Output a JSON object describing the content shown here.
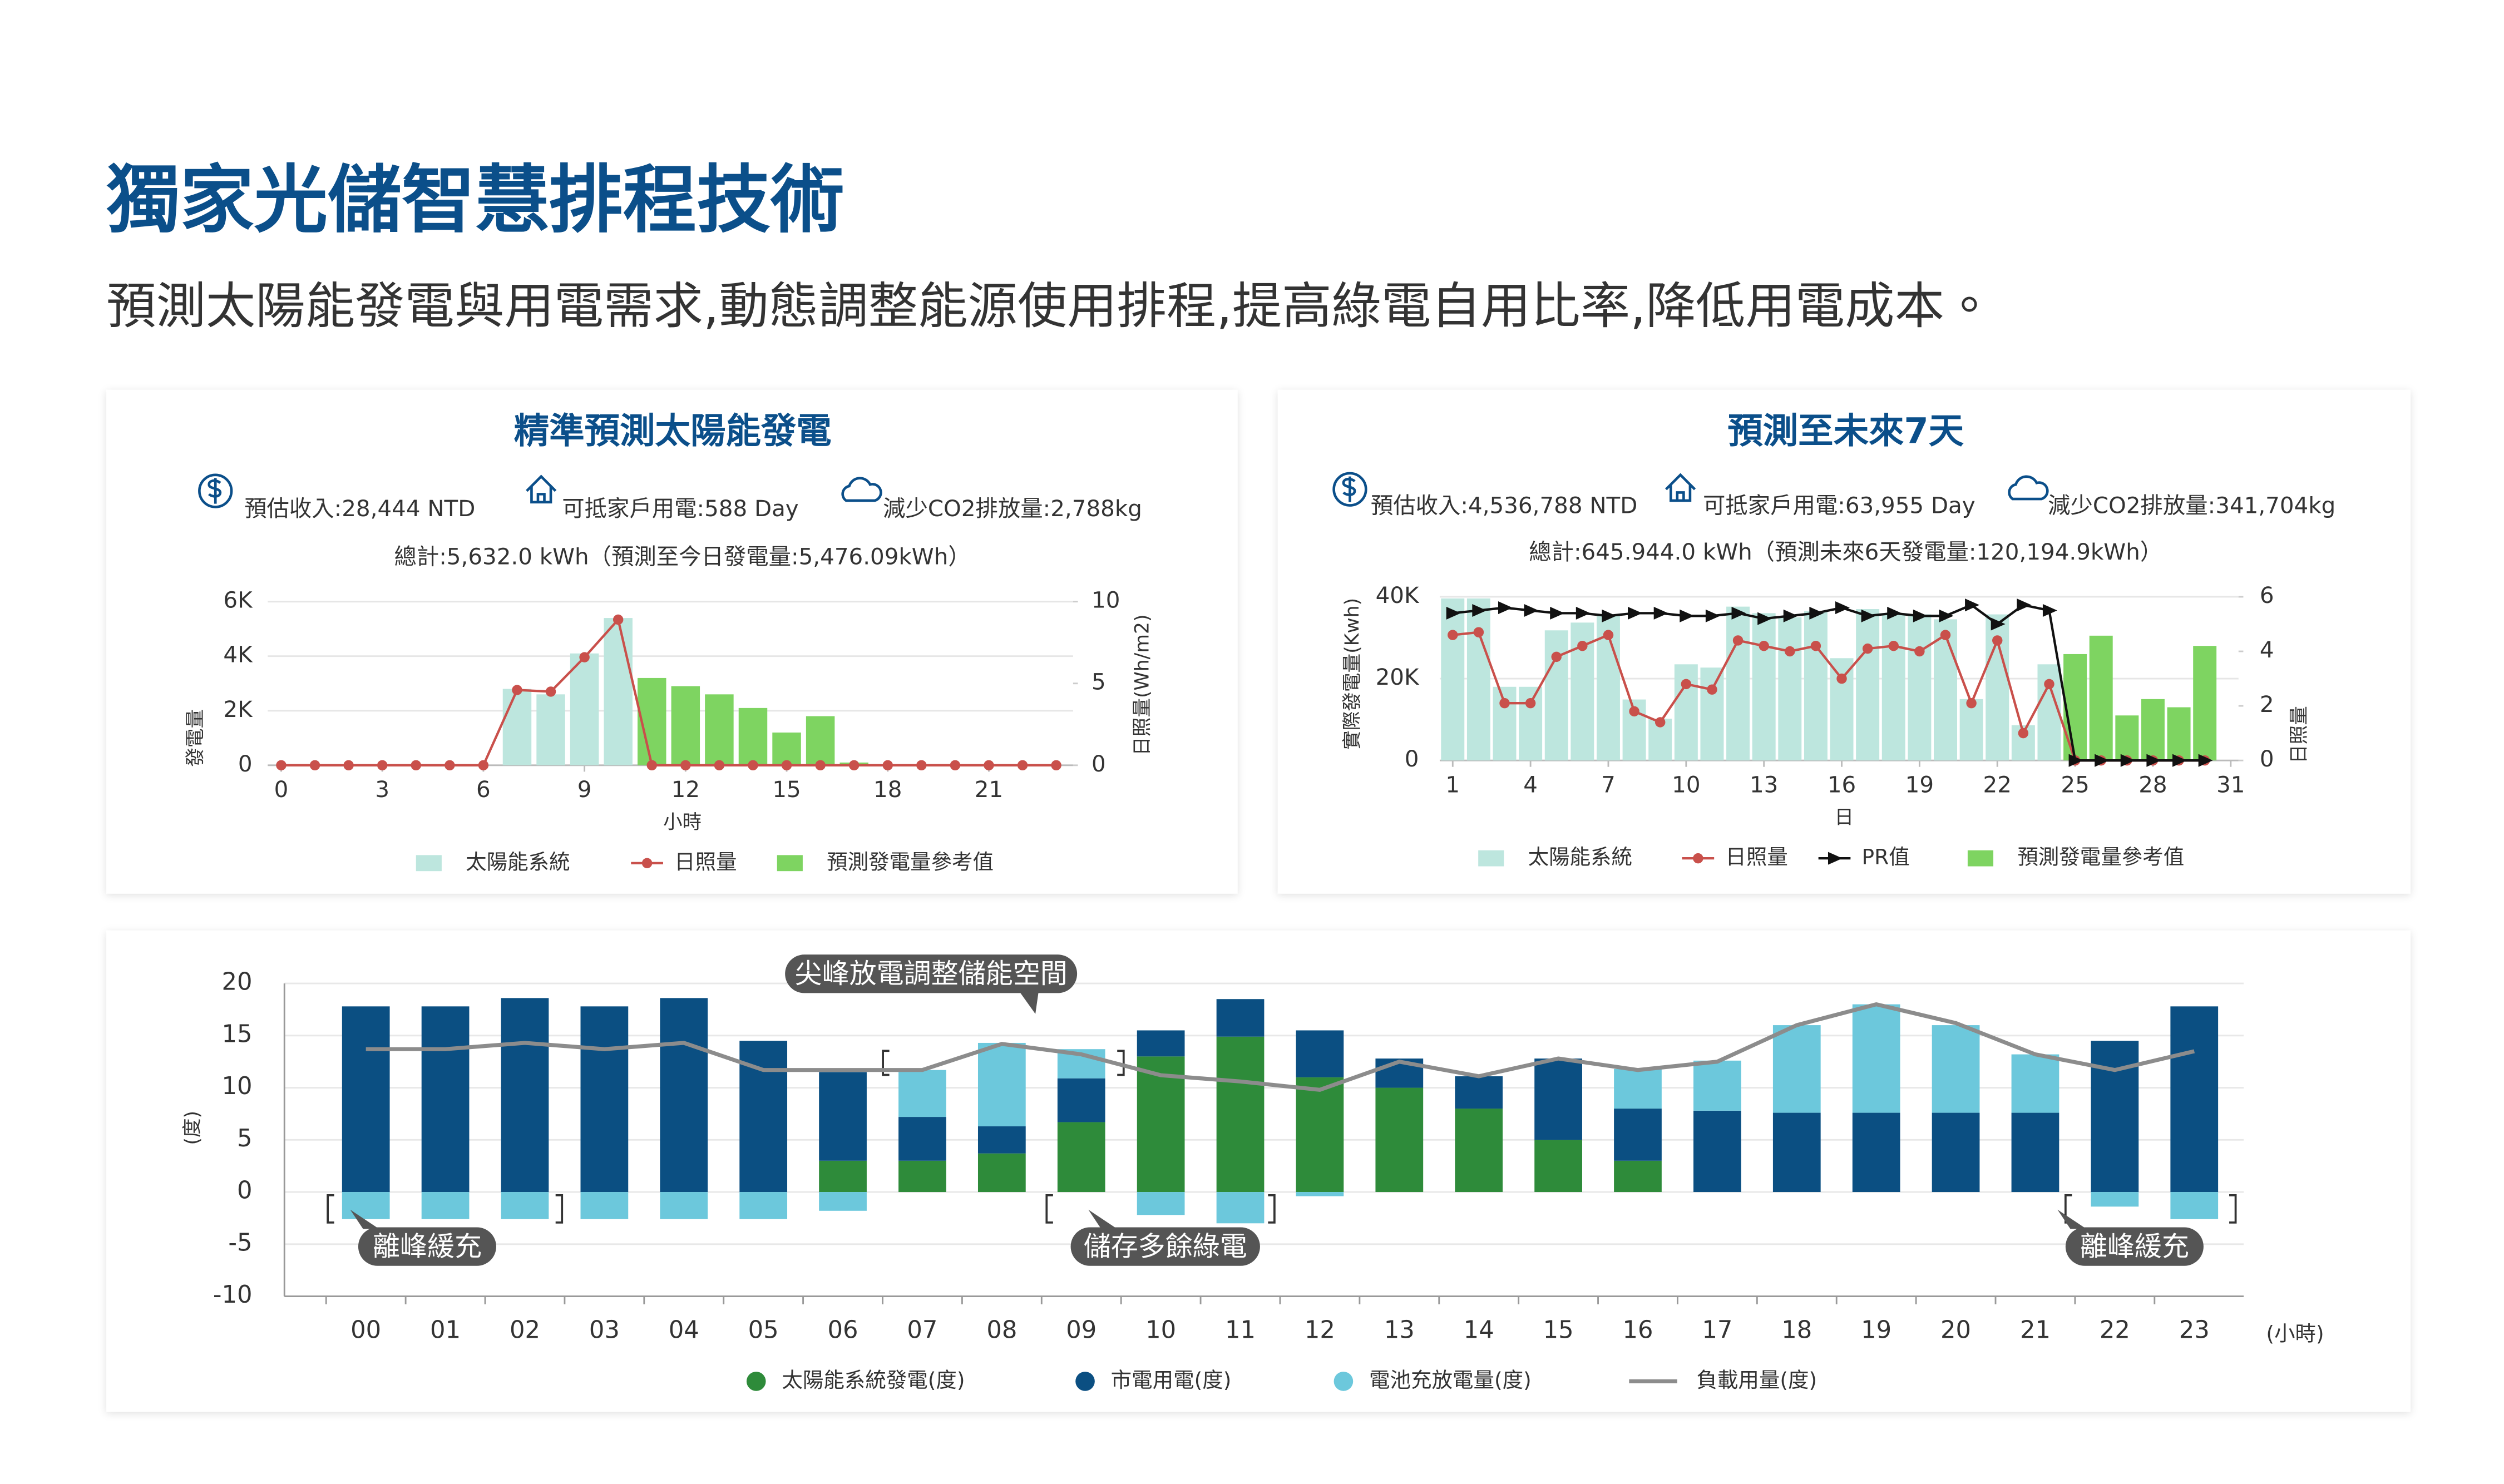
{
  "header": {
    "title": "獨家光儲智慧排程技術",
    "subtitle": "預測太陽能發電與用電需求,動態調整能源使用排程,提高綠電自用比率,降低用電成本。"
  },
  "chart_data": [
    {
      "type": "combo",
      "title": "精準預測太陽能發電",
      "stats": [
        "預估收入:28,444 NTD",
        "可抵家戶用電:588 Day",
        "減少CO2排放量:2,788kg"
      ],
      "total": "總計:5,632.0 kWh（預測至今日發電量:5,476.09kWh）",
      "x_label": "小時",
      "y_label": "發電量",
      "y2_label": "日照量(Wh/m2)",
      "x": [
        0,
        1,
        2,
        3,
        4,
        5,
        6,
        7,
        8,
        9,
        10,
        11,
        12,
        13,
        14,
        15,
        16,
        17,
        18,
        19,
        20,
        21,
        22,
        23
      ],
      "xlim": [
        -0.4,
        23.5
      ],
      "xticks": [
        0,
        3,
        6,
        9,
        12,
        15,
        18,
        21
      ],
      "ylim": [
        0,
        6000
      ],
      "yticks": [
        0,
        {
          "value": 2000,
          "label": "2K"
        },
        {
          "value": 4000,
          "label": "4K"
        },
        {
          "value": 6000,
          "label": "6K"
        }
      ],
      "y2lim": [
        0,
        10
      ],
      "y2ticks": [
        0,
        5,
        10
      ],
      "grid": true,
      "series": [
        {
          "name": "太陽能系統",
          "type": "bar",
          "color": "#bde6de",
          "values": [
            null,
            null,
            null,
            null,
            null,
            null,
            null,
            2800,
            2600,
            4100,
            5400,
            null,
            null,
            null,
            null,
            null,
            null,
            null,
            null,
            null,
            null,
            null,
            null,
            null
          ]
        },
        {
          "name": "日照量",
          "type": "line",
          "marker": "circle",
          "axis": "y2",
          "color": "#c9504b",
          "values": [
            0,
            0,
            0,
            0,
            0,
            0,
            0,
            4.6,
            4.5,
            6.6,
            8.9,
            0,
            0,
            0,
            0,
            0,
            0,
            0,
            0,
            0,
            0,
            0,
            0,
            0
          ]
        },
        {
          "name": "預測發電量參考值",
          "type": "bar",
          "color": "#7ed461",
          "values": [
            null,
            null,
            null,
            null,
            null,
            null,
            null,
            null,
            null,
            null,
            null,
            3200,
            2900,
            2600,
            2100,
            1200,
            1800,
            100,
            null,
            null,
            null,
            null,
            null,
            null
          ]
        }
      ]
    },
    {
      "type": "combo",
      "title": "預測至未來7天",
      "stats": [
        "預估收入:4,536,788 NTD",
        "可抵家戶用電:63,955 Day",
        "減少CO2排放量:341,704kg"
      ],
      "total": "總計:645.944.0 kWh（預測未來6天發電量:120,194.9kWh）",
      "x_label": "日",
      "y_label": "實際發電量(Kwh)",
      "y2_label": "日照量",
      "x": [
        1,
        2,
        3,
        4,
        5,
        6,
        7,
        8,
        9,
        10,
        11,
        12,
        13,
        14,
        15,
        16,
        17,
        18,
        19,
        20,
        21,
        22,
        23,
        24,
        25,
        26,
        27,
        28,
        29,
        30,
        31
      ],
      "xlim": [
        0.5,
        31.3
      ],
      "xticks": [
        1,
        4,
        7,
        10,
        13,
        16,
        19,
        22,
        25,
        28,
        31
      ],
      "ylim": [
        0,
        40000
      ],
      "yticks": [
        0,
        {
          "value": 20000,
          "label": "20K"
        },
        {
          "value": 40000,
          "label": "40K"
        }
      ],
      "y2lim": [
        0,
        6
      ],
      "y2ticks": [
        0,
        2,
        4,
        6
      ],
      "grid": true,
      "series": [
        {
          "name": "太陽能系統",
          "type": "bar",
          "color": "#bde6de",
          "values": [
            39600,
            39600,
            18000,
            18000,
            31800,
            33700,
            35300,
            14900,
            10200,
            23500,
            22700,
            37600,
            36000,
            35000,
            36500,
            25000,
            37000,
            36000,
            35700,
            34500,
            15000,
            35700,
            8600,
            23500,
            null,
            null,
            null,
            null,
            null,
            null,
            null
          ]
        },
        {
          "name": "日照量",
          "type": "line",
          "marker": "circle",
          "axis": "y2",
          "color": "#c9504b",
          "values": [
            4.6,
            4.7,
            2.1,
            2.1,
            3.8,
            4.2,
            4.6,
            1.8,
            1.4,
            2.8,
            2.6,
            4.4,
            4.2,
            4.0,
            4.2,
            3.0,
            4.1,
            4.2,
            4.0,
            4.6,
            2.1,
            4.4,
            1.0,
            2.8,
            0,
            0,
            0,
            0,
            0,
            0,
            null
          ]
        },
        {
          "name": "PR值",
          "type": "line",
          "marker": "triangle",
          "axis": "y2",
          "color": "#111111",
          "values": [
            5.4,
            5.5,
            5.6,
            5.5,
            5.4,
            5.4,
            5.3,
            5.4,
            5.4,
            5.3,
            5.3,
            5.4,
            5.2,
            5.3,
            5.4,
            5.6,
            5.3,
            5.4,
            5.3,
            5.3,
            5.7,
            5.0,
            5.7,
            5.5,
            0,
            0,
            0,
            0,
            0,
            0,
            null
          ]
        },
        {
          "name": "預測發電量參考值",
          "type": "bar",
          "color": "#7ed461",
          "values": [
            null,
            null,
            null,
            null,
            null,
            null,
            null,
            null,
            null,
            null,
            null,
            null,
            null,
            null,
            null,
            null,
            null,
            null,
            null,
            null,
            null,
            null,
            null,
            null,
            26000,
            30500,
            11000,
            15000,
            13000,
            28000,
            null
          ]
        }
      ]
    },
    {
      "type": "stacked_bar",
      "x_label": "(小時)",
      "y_label": "(度)",
      "categories": [
        "00",
        "01",
        "02",
        "03",
        "04",
        "05",
        "06",
        "07",
        "08",
        "09",
        "10",
        "11",
        "12",
        "13",
        "14",
        "15",
        "16",
        "17",
        "18",
        "19",
        "20",
        "21",
        "22",
        "23"
      ],
      "ylim": [
        -10,
        20
      ],
      "yticks": [
        -10,
        -5,
        0,
        5,
        10,
        15,
        20
      ],
      "grid": true,
      "annotations": [
        "尖峰放電調整儲能空間",
        "離峰緩充",
        "儲存多餘綠電",
        "離峰緩充"
      ],
      "series": [
        {
          "name": "太陽能系統發電(度)",
          "type": "bar",
          "color": "#2e8b3a",
          "values": [
            0,
            0,
            0,
            0,
            0,
            0,
            3.0,
            3.0,
            3.7,
            6.7,
            13.0,
            14.9,
            11.0,
            10.0,
            8.0,
            5.0,
            3.0,
            0,
            0,
            0,
            0,
            0,
            0,
            0
          ]
        },
        {
          "name": "市電用電(度)",
          "type": "bar",
          "color": "#0b4f82",
          "values": [
            17.8,
            17.8,
            18.6,
            17.8,
            18.6,
            14.5,
            8.5,
            4.2,
            2.6,
            4.2,
            2.5,
            3.6,
            4.5,
            2.8,
            3.1,
            7.8,
            5.0,
            7.8,
            7.6,
            7.6,
            7.6,
            7.6,
            14.5,
            17.8
          ]
        },
        {
          "name": "電池充放電量(度)",
          "type": "bar",
          "color": "#6cc8dc",
          "values": [
            -2.6,
            -2.6,
            -2.6,
            -2.6,
            -2.6,
            -2.6,
            -1.8,
            4.5,
            8.0,
            2.8,
            -2.2,
            -3.0,
            -0.4,
            0,
            0,
            0,
            3.8,
            4.8,
            8.4,
            10.4,
            8.4,
            5.6,
            -1.4,
            -2.6
          ]
        },
        {
          "name": "負載用量(度)",
          "type": "line",
          "color": "#8c8c8c",
          "values": [
            13.7,
            13.7,
            14.3,
            13.7,
            14.3,
            11.7,
            11.7,
            11.7,
            14.2,
            13.2,
            11.2,
            10.6,
            9.8,
            12.5,
            11.1,
            12.8,
            11.7,
            12.5,
            16.0,
            18.0,
            16.2,
            13.2,
            11.7,
            13.5
          ]
        }
      ]
    }
  ]
}
